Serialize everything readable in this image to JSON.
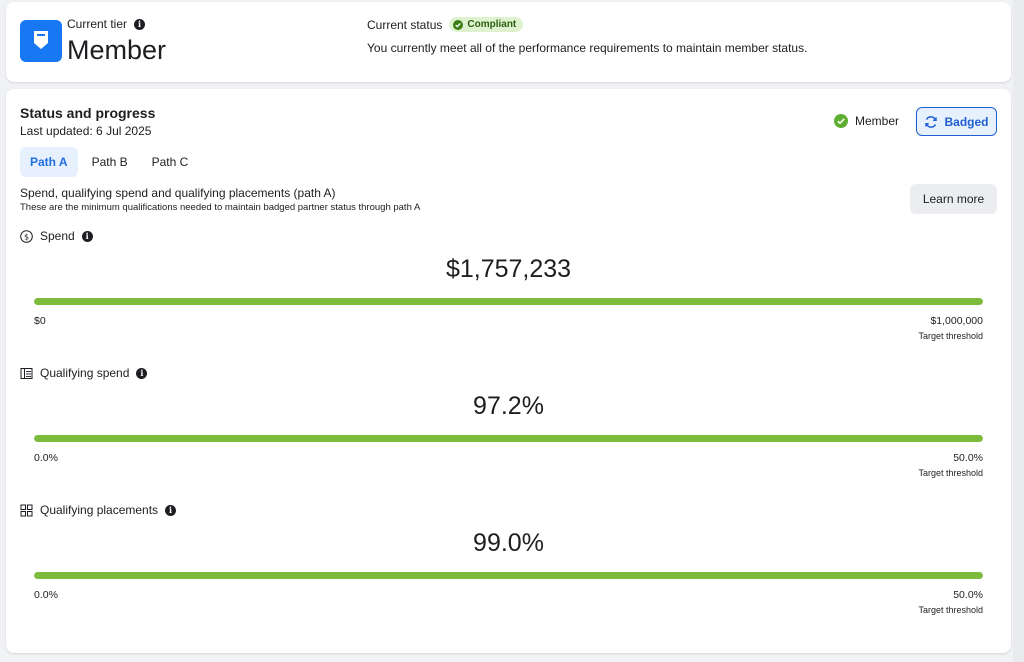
{
  "tier": {
    "label": "Current tier",
    "name": "Member",
    "status_label": "Current status",
    "status_badge": "Compliant",
    "status_desc": "You currently meet all of the performance requirements to maintain member status."
  },
  "status": {
    "title": "Status and progress",
    "updated": "Last updated: 6 Jul 2025",
    "member_label": "Member",
    "badged_label": "Badged",
    "tabs": [
      {
        "label": "Path A",
        "active": true
      },
      {
        "label": "Path B",
        "active": false
      },
      {
        "label": "Path C",
        "active": false
      }
    ],
    "path_heading": "Spend, qualifying spend and qualifying placements (path A)",
    "path_sub": "These are the minimum qualifications needed to maintain badged partner status through path A",
    "learn_more": "Learn more"
  },
  "metrics": [
    {
      "name": "Spend",
      "icon": "dollar-circle-icon",
      "value": "$1,757,233",
      "progress": 1.0,
      "min": "$0",
      "max": "$1,000,000",
      "max_label": "Target threshold"
    },
    {
      "name": "Qualifying spend",
      "icon": "ledger-icon",
      "value": "97.2%",
      "progress": 1.0,
      "min": "0.0%",
      "max": "50.0%",
      "max_label": "Target threshold"
    },
    {
      "name": "Qualifying placements",
      "icon": "placements-grid-icon",
      "value": "99.0%",
      "progress": 1.0,
      "min": "0.0%",
      "max": "50.0%",
      "max_label": "Target threshold"
    }
  ],
  "colors": {
    "accent": "#1877f2",
    "progress": "#7cbb3b",
    "compliant_bg": "#dff2d0",
    "member_check": "#5fae32"
  }
}
